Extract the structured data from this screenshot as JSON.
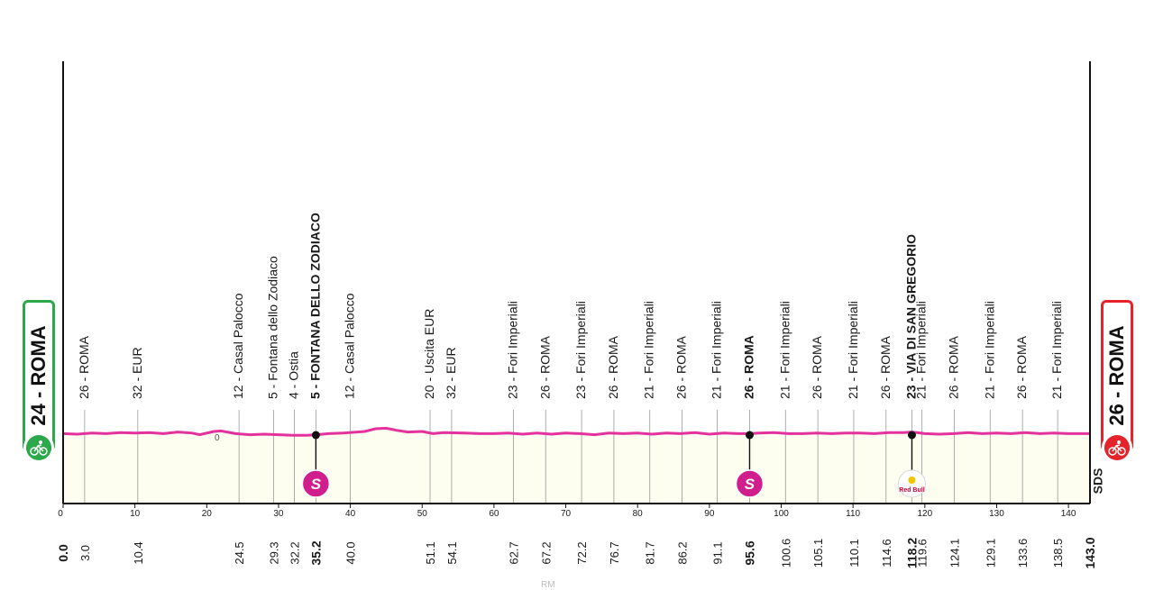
{
  "chart_data": {
    "type": "area",
    "x_label": "",
    "xlim": [
      0,
      143
    ],
    "x_ticks": [
      0,
      10,
      20,
      30,
      40,
      50,
      60,
      70,
      80,
      90,
      100,
      110,
      120,
      130,
      140
    ],
    "ylim": [
      0,
      80
    ],
    "series": [
      {
        "color": "#e3329e",
        "x": [
          0,
          2,
          4,
          6,
          8,
          10,
          12,
          14,
          16,
          18,
          19,
          21,
          22,
          24,
          26,
          28,
          30,
          32,
          34,
          35.2,
          37,
          39,
          42,
          43.5,
          45,
          46.5,
          48,
          50,
          51.5,
          53,
          56,
          58,
          60,
          62,
          64,
          66,
          68,
          70,
          72,
          74,
          76,
          78,
          80,
          82,
          84,
          86,
          88,
          90,
          92,
          94,
          95.6,
          97,
          99,
          101,
          103,
          105,
          107,
          109,
          111,
          113,
          115,
          117,
          118.2,
          120,
          122,
          124,
          126,
          128,
          130,
          132,
          134,
          136,
          138,
          140,
          142,
          143
        ],
        "y": [
          26,
          25,
          27,
          26,
          28,
          27,
          28,
          26,
          29,
          27,
          24,
          30,
          31,
          26,
          24,
          25,
          24,
          23,
          23,
          24,
          26,
          27,
          30,
          35,
          36,
          32,
          29,
          30,
          26,
          28,
          27,
          26,
          26,
          27,
          25,
          27,
          25,
          27,
          26,
          24,
          27,
          26,
          27,
          25,
          27,
          26,
          28,
          25,
          27,
          26,
          26,
          27,
          28,
          26,
          26,
          27,
          26,
          27,
          27,
          26,
          28,
          28,
          29,
          26,
          25,
          26,
          28,
          26,
          27,
          26,
          28,
          26,
          27,
          26,
          26,
          26
        ]
      }
    ],
    "extra_label": "0",
    "waypoints": [
      {
        "km": 0.0,
        "km_label": "0.0",
        "name": "24 - ROMA",
        "type": "start"
      },
      {
        "km": 3.0,
        "km_label": "3.0",
        "name": "26 - ROMA"
      },
      {
        "km": 10.4,
        "km_label": "10.4",
        "name": "32 - EUR"
      },
      {
        "km": 24.5,
        "km_label": "24.5",
        "name": "12 - Casal Palocco"
      },
      {
        "km": 29.3,
        "km_label": "29.3",
        "name": "5 - Fontana dello Zodiaco"
      },
      {
        "km": 32.2,
        "km_label": "32.2",
        "name": "4 - Ostia"
      },
      {
        "km": 35.2,
        "km_label": "35.2",
        "name": "5 - FONTANA DELLO ZODIACO",
        "type": "sprint"
      },
      {
        "km": 40.0,
        "km_label": "40.0",
        "name": "12 - Casal Palocco"
      },
      {
        "km": 51.1,
        "km_label": "51.1",
        "name": "20 - Uscita EUR"
      },
      {
        "km": 54.1,
        "km_label": "54.1",
        "name": "32 - EUR"
      },
      {
        "km": 62.7,
        "km_label": "62.7",
        "name": "23 - Fori Imperiali"
      },
      {
        "km": 67.2,
        "km_label": "67.2",
        "name": "26 - ROMA"
      },
      {
        "km": 72.2,
        "km_label": "72.2",
        "name": "23 - Fori Imperiali"
      },
      {
        "km": 76.7,
        "km_label": "76.7",
        "name": "26 - ROMA"
      },
      {
        "km": 81.7,
        "km_label": "81.7",
        "name": "21 - Fori Imperiali"
      },
      {
        "km": 86.2,
        "km_label": "86.2",
        "name": "26 - ROMA"
      },
      {
        "km": 91.1,
        "km_label": "91.1",
        "name": "21 - Fori Imperiali"
      },
      {
        "km": 95.6,
        "km_label": "95.6",
        "name": "26 - ROMA",
        "type": "sprint"
      },
      {
        "km": 100.6,
        "km_label": "100.6",
        "name": "21 - Fori Imperiali"
      },
      {
        "km": 105.1,
        "km_label": "105.1",
        "name": "26 - ROMA"
      },
      {
        "km": 110.1,
        "km_label": "110.1",
        "name": "21 - Fori Imperiali"
      },
      {
        "km": 114.6,
        "km_label": "114.6",
        "name": "26 - ROMA"
      },
      {
        "km": 118.2,
        "km_label": "118.2",
        "name": "23 - VIA DI SAN GREGORIO",
        "type": "redbull"
      },
      {
        "km": 119.6,
        "km_label": "119.6",
        "name": "21 - Fori Imperiali"
      },
      {
        "km": 124.1,
        "km_label": "124.1",
        "name": "26 - ROMA"
      },
      {
        "km": 129.1,
        "km_label": "129.1",
        "name": "21 - Fori Imperiali"
      },
      {
        "km": 133.6,
        "km_label": "133.6",
        "name": "26 - ROMA"
      },
      {
        "km": 138.5,
        "km_label": "138.5",
        "name": "21 - Fori Imperiali"
      },
      {
        "km": 143.0,
        "km_label": "143.0",
        "name": "26 - ROMA",
        "type": "finish"
      }
    ]
  },
  "start_badge": {
    "label": "24 - ROMA",
    "color": "#2aa84a"
  },
  "finish_badge": {
    "label": "26 - ROMA",
    "color": "#e4232b"
  },
  "sprint_icon_label": "S",
  "redbull_label": "Red Bull",
  "logo_text": "SDS",
  "watermark": "RM",
  "colors": {
    "profile_line": "#e3329e",
    "fill": "#fdfdf0",
    "sprint": "#d01f8c",
    "axis": "#111111"
  }
}
